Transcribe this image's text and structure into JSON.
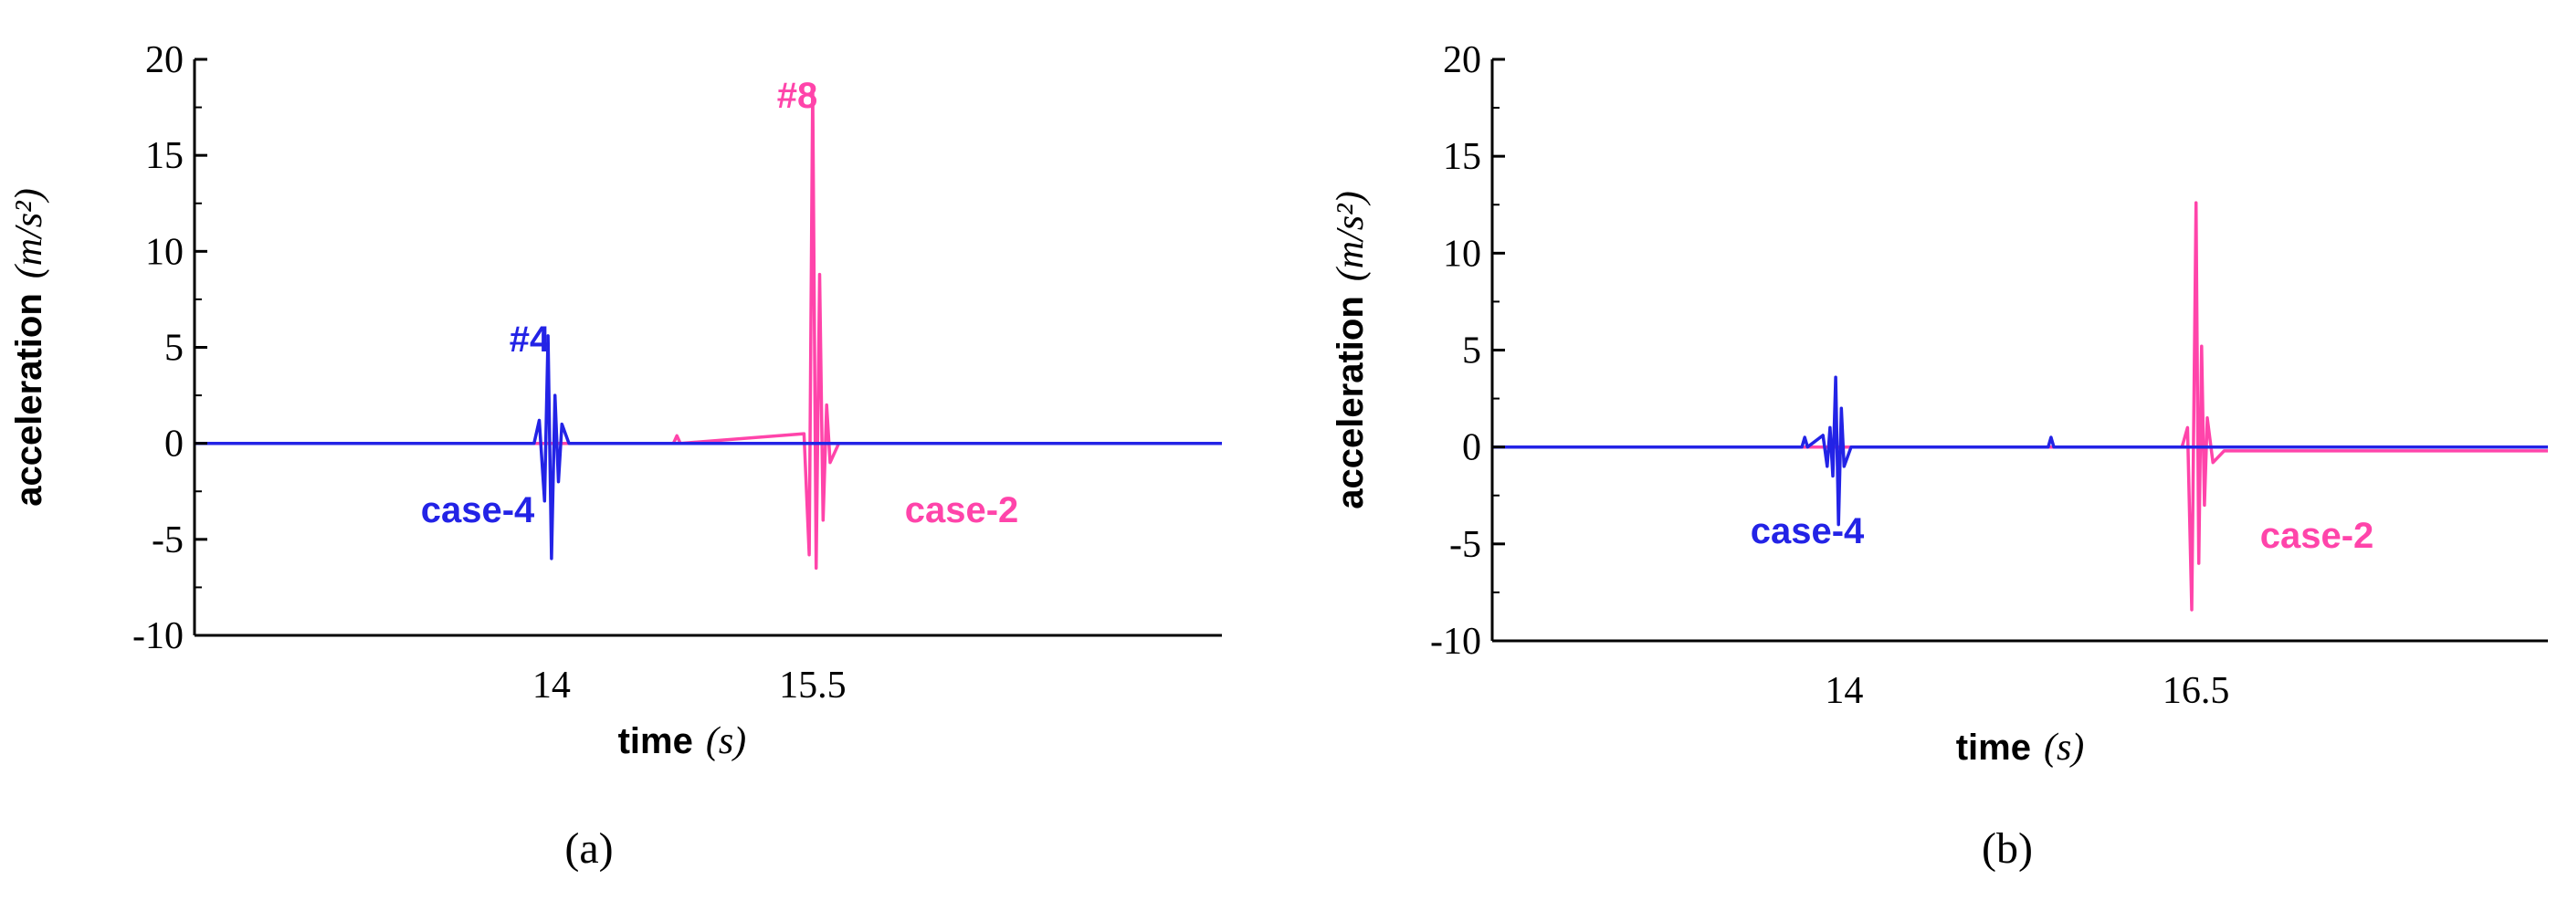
{
  "chart_data": [
    {
      "panel_label": "(a)",
      "type": "line",
      "xlabel": "time",
      "xlabel_unit": "(s)",
      "ylabel": "acceleration",
      "ylabel_unit": "(m/s²)",
      "ylim": [
        -10,
        20
      ],
      "yticks": [
        -10,
        -5,
        0,
        5,
        10,
        15,
        20
      ],
      "xlim": [
        11.95,
        17.85
      ],
      "xticks": [
        14,
        15.5
      ],
      "grid": false,
      "series": [
        {
          "name": "case-4",
          "color": "#2323e6",
          "x": [
            11.95,
            13.9,
            13.93,
            13.96,
            13.98,
            14.0,
            14.02,
            14.04,
            14.06,
            14.1,
            17.85
          ],
          "y": [
            0,
            0,
            1.2,
            -3.0,
            5.6,
            -6.0,
            2.5,
            -2.0,
            1.0,
            0,
            0
          ]
        },
        {
          "name": "case-2",
          "color": "#ff44aa",
          "x": [
            11.95,
            14.7,
            14.72,
            14.74,
            15.45,
            15.48,
            15.5,
            15.52,
            15.54,
            15.56,
            15.58,
            15.6,
            15.65,
            17.85
          ],
          "y": [
            0,
            0,
            0.4,
            0,
            0.5,
            -5.8,
            18.6,
            -6.5,
            8.8,
            -4.0,
            2.0,
            -1.0,
            0,
            0
          ]
        }
      ],
      "annotations": [
        {
          "text": "#4",
          "color": "#2323e6"
        },
        {
          "text": "case-4",
          "color": "#2323e6"
        },
        {
          "text": "#8",
          "color": "#ff44aa"
        },
        {
          "text": "case-2",
          "color": "#ff44aa"
        }
      ]
    },
    {
      "panel_label": "(b)",
      "type": "line",
      "xlabel": "time",
      "xlabel_unit": "(s)",
      "ylabel": "acceleration",
      "ylabel_unit": "(m/s²)",
      "ylim": [
        -10,
        20
      ],
      "yticks": [
        -10,
        -5,
        0,
        5,
        10,
        15,
        20
      ],
      "xlim": [
        11.5,
        19.0
      ],
      "xticks": [
        14,
        16.5
      ],
      "grid": false,
      "series": [
        {
          "name": "case-4",
          "color": "#2323e6",
          "x": [
            11.5,
            13.7,
            13.72,
            13.74,
            13.85,
            13.88,
            13.9,
            13.92,
            13.94,
            13.96,
            13.98,
            14.0,
            14.05,
            15.45,
            15.47,
            15.49,
            19.0
          ],
          "y": [
            0,
            0,
            0.5,
            0,
            0.6,
            -1.0,
            1.0,
            -1.5,
            3.6,
            -4.0,
            2.0,
            -1.0,
            0,
            0,
            0.5,
            0,
            0
          ]
        },
        {
          "name": "case-2",
          "color": "#ff44aa",
          "x": [
            11.5,
            16.4,
            16.44,
            16.47,
            16.5,
            16.52,
            16.54,
            16.56,
            16.58,
            16.62,
            16.7,
            19.0
          ],
          "y": [
            0,
            0,
            1.0,
            -8.4,
            12.6,
            -6.0,
            5.2,
            -3.0,
            1.5,
            -0.8,
            -0.2,
            -0.2
          ]
        }
      ],
      "annotations": [
        {
          "text": "case-4",
          "color": "#2323e6"
        },
        {
          "text": "case-2",
          "color": "#ff44aa"
        }
      ]
    }
  ]
}
